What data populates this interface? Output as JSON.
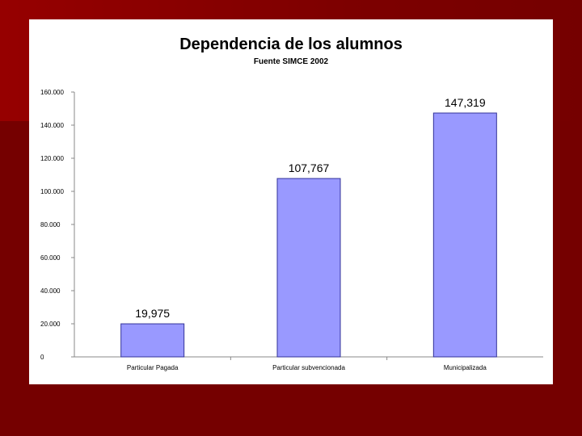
{
  "chart_data": {
    "type": "bar",
    "title": "Dependencia de los alumnos",
    "subtitle": "Fuente SIMCE 2002",
    "categories": [
      "Particular Pagada",
      "Particular subvencionada",
      "Municipalizada"
    ],
    "values": [
      19975,
      107767,
      147319
    ],
    "data_labels": [
      "19,975",
      "107,767",
      "147,319"
    ],
    "y_ticks": [
      0,
      20000,
      40000,
      60000,
      80000,
      100000,
      120000,
      140000,
      160000
    ],
    "y_tick_labels": [
      "0",
      "20.000",
      "40.000",
      "60.000",
      "80.000",
      "100.000",
      "120.000",
      "140.000",
      "160.000"
    ],
    "ylim": [
      0,
      160000
    ],
    "xlabel": "",
    "ylabel": "",
    "grid": false,
    "legend": "none",
    "colors": {
      "bar_fill": "#9999ff",
      "bar_stroke": "#333399",
      "background": "#750000",
      "panel": "#ffffff"
    }
  }
}
